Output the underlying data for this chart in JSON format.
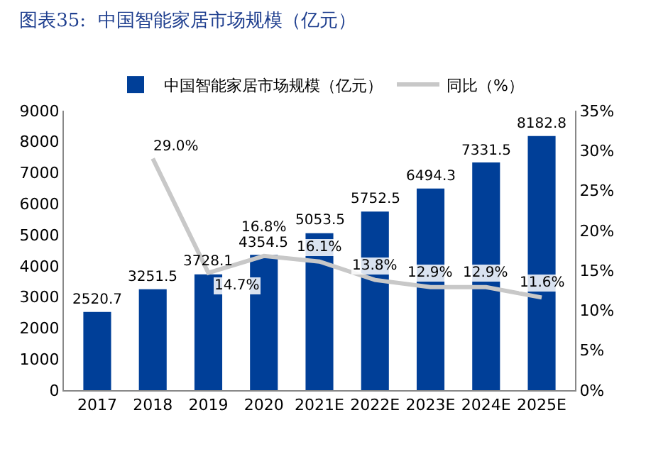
{
  "chart_data": {
    "type": "bar",
    "title": "图表35:  中国智能家居市场规模（亿元）",
    "categories": [
      "2017",
      "2018",
      "2019",
      "2020",
      "2021E",
      "2022E",
      "2023E",
      "2024E",
      "2025E"
    ],
    "series": [
      {
        "name": "中国智能家居市场规模（亿元）",
        "color": "#003f98",
        "values": [
          2520.7,
          3251.5,
          3728.1,
          4354.5,
          5053.5,
          5752.5,
          6494.3,
          7331.5,
          8182.8
        ],
        "value_labels": [
          "2520.7",
          "3251.5",
          "3728.1",
          "4354.5",
          "5053.5",
          "5752.5",
          "6494.3",
          "7331.5",
          "8182.8"
        ]
      },
      {
        "name": "同比（%）",
        "type": "line",
        "axis": "y2",
        "color": "#c8c8c8",
        "values": [
          null,
          29.0,
          14.7,
          16.8,
          16.1,
          13.8,
          12.9,
          12.9,
          11.6
        ],
        "value_labels": [
          null,
          "29.0%",
          "14.7%",
          "16.8%",
          "16.1%",
          "13.8%",
          "12.9%",
          "12.9%",
          "11.6%"
        ]
      }
    ],
    "ylim": [
      0,
      9000
    ],
    "yticks": [
      0,
      1000,
      2000,
      3000,
      4000,
      5000,
      6000,
      7000,
      8000,
      9000
    ],
    "y2lim": [
      0,
      35
    ],
    "y2ticks": [
      {
        "value": 0,
        "label": "0%"
      },
      {
        "value": 5,
        "label": "5%"
      },
      {
        "value": 10,
        "label": "10%"
      },
      {
        "value": 15,
        "label": "15%"
      },
      {
        "value": 20,
        "label": "20%"
      },
      {
        "value": 25,
        "label": "25%"
      },
      {
        "value": 30,
        "label": "30%"
      },
      {
        "value": 35,
        "label": "35%"
      }
    ],
    "grid": false,
    "legend": "top",
    "marker": "none",
    "line_style": "solid"
  }
}
